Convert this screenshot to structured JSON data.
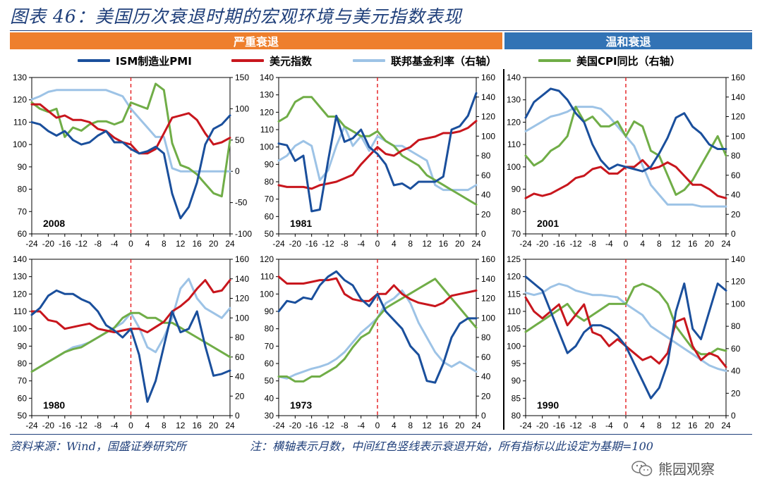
{
  "title": "图表 46：美国历次衰退时期的宏观环境与美元指数表现",
  "bands": {
    "severe": "严重衰退",
    "mild": "温和衰退"
  },
  "legend": [
    {
      "label": "ISM制造业PMI",
      "color": "#1a4f9c"
    },
    {
      "label": "美元指数",
      "color": "#c8161d"
    },
    {
      "label": "联邦基金利率（右轴）",
      "color": "#9dc3e6"
    },
    {
      "label": "美国CPI同比（右轴）",
      "color": "#70ad47"
    }
  ],
  "footer": {
    "source": "资料来源：Wind，国盛证券研究所",
    "note": "注：横轴表示月数，中间红色竖线表示衰退开始，所有指标以此设定为基期=100"
  },
  "watermark": "熊园观察",
  "chart_data": [
    {
      "type": "line",
      "label": "2008",
      "x": [
        -24,
        -22,
        -20,
        -18,
        -16,
        -14,
        -12,
        -10,
        -8,
        -6,
        -4,
        -2,
        0,
        2,
        4,
        6,
        8,
        10,
        12,
        14,
        16,
        18,
        20,
        22,
        24
      ],
      "xticks": [
        -24,
        -20,
        -16,
        -12,
        -8,
        -4,
        0,
        4,
        8,
        12,
        16,
        20,
        24
      ],
      "ylim": [
        60,
        130
      ],
      "yticks": [
        60,
        70,
        80,
        90,
        100,
        110,
        120,
        130
      ],
      "y2lim": [
        -100,
        150
      ],
      "y2ticks": [
        -100,
        -50,
        0,
        50,
        100,
        150
      ],
      "series": [
        {
          "name": "ISM制造业PMI",
          "axis": "left",
          "values": [
            110,
            109,
            106,
            104,
            106,
            102,
            100,
            101,
            104,
            106,
            101,
            101,
            98,
            96,
            97,
            99,
            96,
            78,
            67,
            72,
            83,
            100,
            107,
            109,
            113
          ]
        },
        {
          "name": "美元指数",
          "axis": "left",
          "values": [
            118,
            118,
            115,
            112,
            113,
            111,
            111,
            110,
            107,
            106,
            103,
            101,
            100,
            96,
            96,
            98,
            105,
            112,
            113,
            114,
            111,
            105,
            100,
            101,
            103
          ]
        },
        {
          "name": "联邦基金利率（右轴）",
          "axis": "right",
          "values": [
            115,
            120,
            127,
            130,
            130,
            130,
            130,
            130,
            130,
            130,
            125,
            120,
            100,
            85,
            70,
            55,
            55,
            5,
            0,
            0,
            0,
            0,
            0,
            0,
            0
          ]
        },
        {
          "name": "美国CPI同比（右轴）",
          "axis": "right",
          "values": [
            110,
            100,
            95,
            100,
            55,
            70,
            65,
            75,
            80,
            80,
            75,
            80,
            110,
            105,
            100,
            140,
            130,
            45,
            10,
            5,
            -5,
            -20,
            -35,
            -40,
            50
          ]
        }
      ]
    },
    {
      "type": "line",
      "label": "1981",
      "x": [
        -24,
        -22,
        -20,
        -18,
        -16,
        -14,
        -12,
        -10,
        -8,
        -6,
        -4,
        -2,
        0,
        2,
        4,
        6,
        8,
        10,
        12,
        14,
        16,
        18,
        20,
        22,
        24
      ],
      "xticks": [
        -24,
        -20,
        -16,
        -12,
        -8,
        -4,
        0,
        4,
        8,
        12,
        16,
        20,
        24
      ],
      "ylim": [
        50,
        140
      ],
      "yticks": [
        50,
        60,
        70,
        80,
        90,
        100,
        110,
        120,
        130,
        140
      ],
      "y2lim": [
        0,
        160
      ],
      "y2ticks": [
        0,
        20,
        40,
        60,
        80,
        100,
        120,
        140,
        160
      ],
      "series": [
        {
          "name": "ISM制造业PMI",
          "axis": "left",
          "values": [
            102,
            101,
            92,
            95,
            63,
            64,
            92,
            118,
            103,
            105,
            110,
            100,
            96,
            90,
            78,
            79,
            76,
            80,
            80,
            80,
            83,
            110,
            112,
            118,
            131
          ]
        },
        {
          "name": "美元指数",
          "axis": "left",
          "values": [
            78,
            77,
            77,
            77,
            76,
            78,
            79,
            80,
            82,
            84,
            90,
            95,
            100,
            96,
            95,
            98,
            100,
            104,
            105,
            106,
            108,
            108,
            109,
            111,
            115
          ]
        },
        {
          "name": "联邦基金利率（右轴）",
          "axis": "right",
          "values": [
            75,
            80,
            90,
            95,
            90,
            55,
            65,
            90,
            110,
            90,
            100,
            85,
            100,
            95,
            90,
            90,
            85,
            80,
            75,
            50,
            45,
            45,
            45,
            45,
            50
          ]
        },
        {
          "name": "美国CPI同比（右轴）",
          "axis": "right",
          "values": [
            115,
            120,
            135,
            140,
            140,
            130,
            120,
            120,
            110,
            105,
            100,
            100,
            105,
            95,
            90,
            80,
            75,
            70,
            60,
            55,
            50,
            45,
            40,
            35,
            30
          ]
        }
      ]
    },
    {
      "type": "line",
      "label": "2001",
      "x": [
        -24,
        -22,
        -20,
        -18,
        -16,
        -14,
        -12,
        -10,
        -8,
        -6,
        -4,
        -2,
        0,
        2,
        4,
        6,
        8,
        10,
        12,
        14,
        16,
        18,
        20,
        22,
        24
      ],
      "xticks": [
        -24,
        -20,
        -16,
        -12,
        -8,
        -4,
        0,
        4,
        8,
        12,
        16,
        20,
        24
      ],
      "ylim": [
        70,
        140
      ],
      "yticks": [
        70,
        80,
        90,
        100,
        110,
        120,
        130,
        140
      ],
      "y2lim": [
        0,
        160
      ],
      "y2ticks": [
        0,
        20,
        40,
        60,
        80,
        100,
        120,
        140,
        160
      ],
      "series": [
        {
          "name": "ISM制造业PMI",
          "axis": "left",
          "values": [
            122,
            129,
            132,
            135,
            134,
            130,
            124,
            120,
            110,
            103,
            99,
            101,
            100,
            99,
            98,
            100,
            106,
            113,
            122,
            124,
            118,
            115,
            110,
            108,
            108
          ]
        },
        {
          "name": "美元指数",
          "axis": "left",
          "values": [
            86,
            88,
            87,
            88,
            90,
            92,
            95,
            96,
            99,
            100,
            97,
            97,
            100,
            100,
            103,
            99,
            100,
            102,
            100,
            96,
            92,
            92,
            90,
            87,
            86
          ]
        },
        {
          "name": "联邦基金利率（右轴）",
          "axis": "right",
          "values": [
            105,
            110,
            115,
            120,
            122,
            125,
            130,
            130,
            130,
            128,
            120,
            110,
            100,
            90,
            70,
            50,
            40,
            30,
            30,
            30,
            30,
            28,
            28,
            28,
            28
          ]
        },
        {
          "name": "美国CPI同比（右轴）",
          "axis": "right",
          "values": [
            80,
            70,
            75,
            85,
            90,
            100,
            130,
            115,
            120,
            110,
            110,
            115,
            100,
            115,
            110,
            85,
            80,
            60,
            40,
            45,
            55,
            70,
            85,
            100,
            80
          ]
        }
      ]
    },
    {
      "type": "line",
      "label": "1980",
      "x": [
        -24,
        -22,
        -20,
        -18,
        -16,
        -14,
        -12,
        -10,
        -8,
        -6,
        -4,
        -2,
        0,
        2,
        4,
        6,
        8,
        10,
        12,
        14,
        16,
        18,
        20,
        22,
        24
      ],
      "xticks": [
        -24,
        -20,
        -16,
        -12,
        -8,
        -4,
        0,
        4,
        8,
        12,
        16,
        20,
        24
      ],
      "ylim": [
        50,
        140
      ],
      "yticks": [
        50,
        60,
        70,
        80,
        90,
        100,
        110,
        120,
        130,
        140
      ],
      "y2lim": [
        0,
        160
      ],
      "y2ticks": [
        0,
        20,
        40,
        60,
        80,
        100,
        120,
        140,
        160
      ],
      "series": [
        {
          "name": "ISM制造业PMI",
          "axis": "left",
          "values": [
            108,
            112,
            119,
            122,
            120,
            120,
            117,
            115,
            110,
            102,
            99,
            95,
            100,
            85,
            58,
            70,
            90,
            110,
            98,
            100,
            110,
            90,
            73,
            74,
            76
          ]
        },
        {
          "name": "美元指数",
          "axis": "left",
          "values": [
            110,
            110,
            105,
            104,
            100,
            101,
            102,
            103,
            100,
            99,
            98,
            99,
            100,
            100,
            98,
            101,
            104,
            110,
            113,
            117,
            123,
            128,
            121,
            122,
            128
          ]
        },
        {
          "name": "联邦基金利率（右轴）",
          "axis": "right",
          "values": [
            45,
            50,
            55,
            60,
            65,
            70,
            72,
            75,
            80,
            85,
            90,
            95,
            105,
            90,
            70,
            65,
            80,
            100,
            130,
            140,
            120,
            110,
            105,
            100,
            110
          ]
        },
        {
          "name": "美国CPI同比（右轴）",
          "axis": "right",
          "values": [
            45,
            50,
            55,
            60,
            65,
            68,
            70,
            75,
            80,
            85,
            90,
            100,
            105,
            105,
            100,
            100,
            95,
            95,
            90,
            85,
            80,
            75,
            70,
            65,
            60
          ]
        }
      ]
    },
    {
      "type": "line",
      "label": "1973",
      "x": [
        -24,
        -22,
        -20,
        -18,
        -16,
        -14,
        -12,
        -10,
        -8,
        -6,
        -4,
        -2,
        0,
        2,
        4,
        6,
        8,
        10,
        12,
        14,
        16,
        18,
        20,
        22,
        24
      ],
      "xticks": [
        -24,
        -20,
        -16,
        -12,
        -8,
        -4,
        0,
        4,
        8,
        12,
        16,
        20,
        24
      ],
      "ylim": [
        30,
        120
      ],
      "yticks": [
        30,
        40,
        50,
        60,
        70,
        80,
        90,
        100,
        110,
        120
      ],
      "y2lim": [
        0,
        160
      ],
      "y2ticks": [
        0,
        20,
        40,
        60,
        80,
        100,
        120,
        140,
        160
      ],
      "series": [
        {
          "name": "ISM制造业PMI",
          "axis": "left",
          "values": [
            90,
            96,
            95,
            98,
            97,
            105,
            110,
            113,
            108,
            105,
            97,
            93,
            100,
            90,
            85,
            80,
            70,
            65,
            50,
            49,
            60,
            75,
            83,
            86,
            86
          ]
        },
        {
          "name": "美元指数",
          "axis": "left",
          "values": [
            110,
            106,
            106,
            106,
            107,
            108,
            108,
            109,
            100,
            97,
            96,
            96,
            100,
            100,
            105,
            100,
            97,
            95,
            94,
            93,
            95,
            99,
            100,
            101,
            102
          ]
        },
        {
          "name": "联邦基金利率（右轴）",
          "axis": "right",
          "values": [
            40,
            38,
            42,
            45,
            48,
            50,
            53,
            58,
            65,
            75,
            85,
            92,
            100,
            115,
            120,
            128,
            115,
            95,
            80,
            65,
            55,
            50,
            55,
            50,
            45
          ]
        },
        {
          "name": "美国CPI同比（右轴）",
          "axis": "right",
          "values": [
            40,
            40,
            35,
            35,
            40,
            40,
            45,
            50,
            58,
            70,
            80,
            85,
            100,
            110,
            115,
            120,
            125,
            130,
            135,
            140,
            130,
            120,
            110,
            100,
            90
          ]
        }
      ]
    },
    {
      "type": "line",
      "label": "1990",
      "x": [
        -24,
        -22,
        -20,
        -18,
        -16,
        -14,
        -12,
        -10,
        -8,
        -6,
        -4,
        -2,
        0,
        2,
        4,
        6,
        8,
        10,
        12,
        14,
        16,
        18,
        20,
        22,
        24
      ],
      "xticks": [
        -24,
        -20,
        -16,
        -12,
        -8,
        -4,
        0,
        4,
        8,
        12,
        16,
        20,
        24
      ],
      "ylim": [
        80,
        125
      ],
      "yticks": [
        80,
        85,
        90,
        95,
        100,
        105,
        110,
        115,
        120,
        125
      ],
      "y2lim": [
        0,
        140
      ],
      "y2ticks": [
        0,
        20,
        40,
        60,
        80,
        100,
        120,
        140
      ],
      "series": [
        {
          "name": "ISM制造业PMI",
          "axis": "left",
          "values": [
            120,
            118,
            116,
            110,
            104,
            98,
            100,
            104,
            106,
            106,
            105,
            103,
            100,
            95,
            90,
            85,
            88,
            95,
            110,
            118,
            105,
            102,
            110,
            118,
            116
          ]
        },
        {
          "name": "美元指数",
          "axis": "left",
          "values": [
            114,
            110,
            108,
            110,
            112,
            106,
            109,
            112,
            104,
            103,
            100,
            102,
            100,
            98,
            96,
            97,
            95,
            98,
            107,
            108,
            100,
            96,
            98,
            97,
            94
          ]
        },
        {
          "name": "联邦基金利率（右轴）",
          "axis": "right",
          "values": [
            110,
            108,
            110,
            115,
            118,
            116,
            112,
            110,
            108,
            108,
            107,
            106,
            100,
            95,
            90,
            80,
            75,
            70,
            65,
            60,
            55,
            50,
            45,
            42,
            40
          ]
        },
        {
          "name": "美国CPI同比（右轴）",
          "axis": "right",
          "values": [
            75,
            80,
            85,
            90,
            95,
            100,
            90,
            85,
            90,
            95,
            100,
            100,
            100,
            115,
            118,
            115,
            110,
            100,
            80,
            70,
            60,
            55,
            55,
            60,
            58
          ]
        }
      ]
    }
  ]
}
